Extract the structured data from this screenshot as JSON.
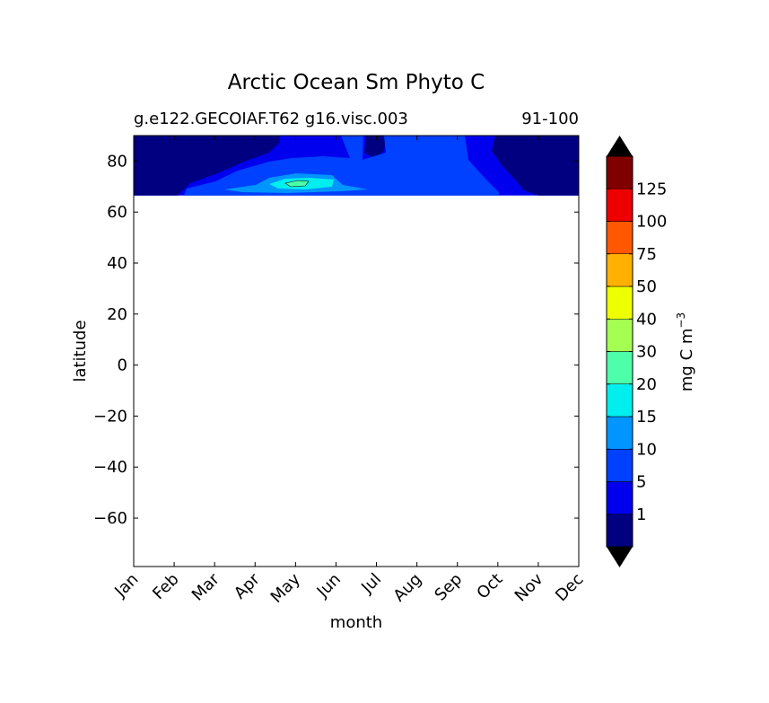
{
  "chart_data": {
    "type": "heatmap",
    "title": "Arctic Ocean Sm Phyto C",
    "subtitle_left": "g.e122.GECOIAF.T62 g16.visc.003",
    "subtitle_right": "91-100",
    "xlabel": "month",
    "ylabel": "latitude",
    "x_categories": [
      "Jan",
      "Feb",
      "Mar",
      "Apr",
      "May",
      "Jun",
      "Jul",
      "Aug",
      "Sep",
      "Oct",
      "Nov",
      "Dec"
    ],
    "ylim": [
      -79,
      90
    ],
    "y_ticks": [
      -60,
      -40,
      -20,
      0,
      20,
      40,
      60,
      80
    ],
    "y_tick_labels": [
      "−60",
      "−40",
      "−20",
      "0",
      "20",
      "40",
      "60",
      "80"
    ],
    "data_lat_range": [
      66.5,
      90
    ],
    "colorbar": {
      "label": "mg C m",
      "label_exponent": "−3",
      "levels": [
        0,
        1,
        5,
        10,
        15,
        20,
        30,
        40,
        50,
        75,
        100,
        125,
        150
      ],
      "tick_labels": [
        "1",
        "5",
        "10",
        "15",
        "20",
        "30",
        "40",
        "50",
        "75",
        "100",
        "125"
      ],
      "colors": [
        "#000080",
        "#0000ee",
        "#0040ff",
        "#0095ff",
        "#00eeee",
        "#4dffa9",
        "#a4ff52",
        "#eeff00",
        "#ffb000",
        "#ff5800",
        "#ee0000",
        "#800000"
      ],
      "extend_low_color": "#000000",
      "extend_high_color": "#000000"
    },
    "regions": [
      {
        "level_index": 0,
        "description": "winter low values, Jan-Feb and Oct-Dec"
      },
      {
        "level_index": 1,
        "description": "1-5 band covering most of the Arctic year"
      },
      {
        "level_index": 2,
        "description": "5-10 spring bloom band Mar-Jun"
      },
      {
        "level_index": 3,
        "description": "10-15 bloom near May"
      },
      {
        "level_index": 4,
        "description": "15-20 peak near May"
      },
      {
        "level_index": 5,
        "description": "20-30 maximum near May at ~71N"
      }
    ]
  }
}
